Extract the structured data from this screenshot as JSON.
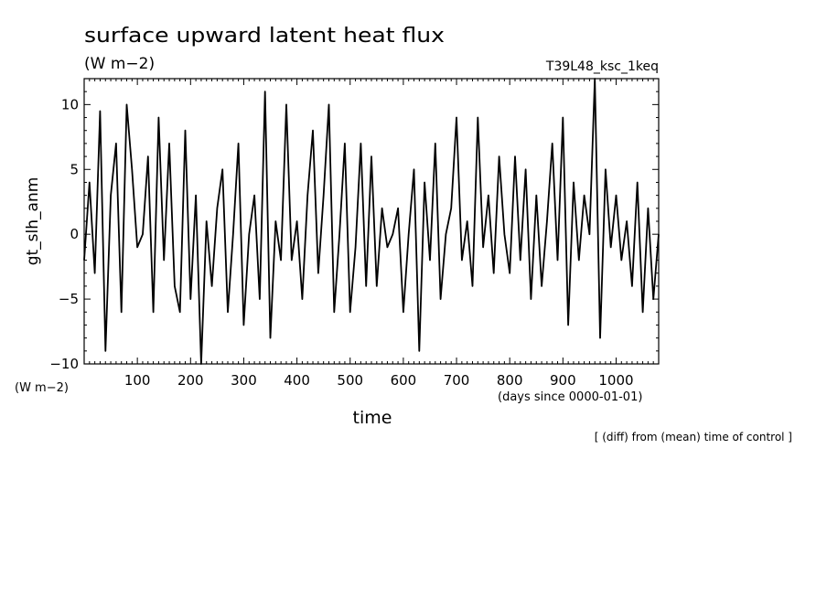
{
  "chart_data": {
    "type": "line",
    "title": "surface upward latent heat flux",
    "subtitle": "(W m−2)",
    "run_label": "T39L48_ksc_1keq",
    "xlabel": "time",
    "x_units": "(days since 0000-01-01)",
    "ylabel": "gt_slh_anm",
    "y_units": "(W m−2)",
    "note": "[ (diff) from (mean) time of control ]",
    "xlim": [
      0,
      1080
    ],
    "ylim": [
      -10,
      12
    ],
    "x_ticks": [
      100,
      200,
      300,
      400,
      500,
      600,
      700,
      800,
      900,
      1000
    ],
    "y_ticks": [
      -10,
      -5,
      0,
      5,
      10
    ],
    "x_tick_labels": [
      "100",
      "200",
      "300",
      "400",
      "500",
      "600",
      "700",
      "800",
      "900",
      "1000"
    ],
    "y_tick_labels": [
      "−10",
      "−5",
      "0",
      "5",
      "10"
    ],
    "grid": false,
    "legend": "none",
    "color": "#000000",
    "series": [
      {
        "x": [
          0,
          10,
          20,
          30,
          40,
          50,
          60,
          70,
          80,
          90,
          100,
          110,
          120,
          130,
          140,
          150,
          160,
          170,
          180,
          190,
          200,
          210,
          220,
          230,
          240,
          250,
          260,
          270,
          280,
          290,
          300,
          310,
          320,
          330,
          340,
          350,
          360,
          370,
          380,
          390,
          400,
          410,
          420,
          430,
          440,
          450,
          460,
          470,
          480,
          490,
          500,
          510,
          520,
          530,
          540,
          550,
          560,
          570,
          580,
          590,
          600,
          610,
          620,
          630,
          640,
          650,
          660,
          670,
          680,
          690,
          700,
          710,
          720,
          730,
          740,
          750,
          760,
          770,
          780,
          790,
          800,
          810,
          820,
          830,
          840,
          850,
          860,
          870,
          880,
          890,
          900,
          910,
          920,
          930,
          940,
          950,
          960,
          970,
          980,
          990,
          1000,
          1010,
          1020,
          1030,
          1040,
          1050,
          1060,
          1070,
          1080
        ],
        "values": [
          -2,
          4,
          -3,
          9.5,
          -9,
          3,
          7,
          -6,
          10,
          5,
          -1,
          0,
          6,
          -6,
          9,
          -2,
          7,
          -4,
          -6,
          8,
          -5,
          3,
          -10,
          1,
          -4,
          2,
          5,
          -6,
          0,
          7,
          -7,
          0,
          3,
          -5,
          11,
          -8,
          1,
          -2,
          10,
          -2,
          1,
          -5,
          3,
          8,
          -3,
          3,
          10,
          -6,
          0,
          7,
          -6,
          -1,
          7,
          -4,
          6,
          -4,
          2,
          -1,
          0,
          2,
          -6,
          0,
          5,
          -9,
          4,
          -2,
          7,
          -5,
          0,
          2,
          9,
          -2,
          1,
          -4,
          9,
          -1,
          3,
          -3,
          6,
          0,
          -3,
          6,
          -2,
          5,
          -5,
          3,
          -4,
          1,
          7,
          -2,
          9,
          -7,
          4,
          -2,
          3,
          0,
          12,
          -8,
          5,
          -1,
          3,
          -2,
          1,
          -4,
          4,
          -6,
          2,
          -5,
          0
        ]
      }
    ]
  }
}
